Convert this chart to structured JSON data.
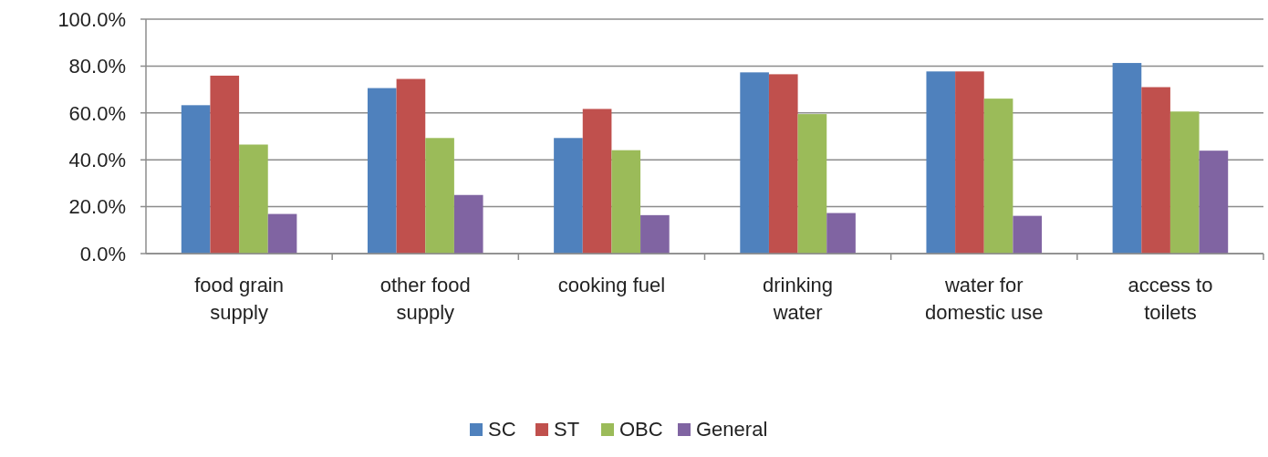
{
  "chart_data": {
    "type": "bar",
    "categories": [
      "food grain supply",
      "other food supply",
      "cooking fuel",
      "drinking water",
      "water for domestic use",
      "access to toilets"
    ],
    "series": [
      {
        "name": "SC",
        "color": "#4f81bd",
        "values": [
          63.3,
          70.6,
          49.3,
          77.3,
          77.7,
          81.3
        ]
      },
      {
        "name": "ST",
        "color": "#c0504d",
        "values": [
          75.9,
          74.5,
          61.7,
          76.5,
          77.7,
          71.0
        ]
      },
      {
        "name": "OBC",
        "color": "#9bbb59",
        "values": [
          46.5,
          49.3,
          44.1,
          59.5,
          66.1,
          60.6
        ]
      },
      {
        "name": "General",
        "color": "#8064a2",
        "values": [
          16.9,
          25.0,
          16.4,
          17.3,
          16.1,
          43.9
        ]
      }
    ],
    "ylim": [
      0,
      100
    ],
    "yticks": [
      {
        "value": 0,
        "label": "0.0%"
      },
      {
        "value": 20,
        "label": "20.0%"
      },
      {
        "value": 40,
        "label": "40.0%"
      },
      {
        "value": 60,
        "label": "60.0%"
      },
      {
        "value": 80,
        "label": "80.0%"
      },
      {
        "value": 100,
        "label": "100.0%"
      }
    ],
    "grid": "y",
    "legend": "bottom"
  }
}
